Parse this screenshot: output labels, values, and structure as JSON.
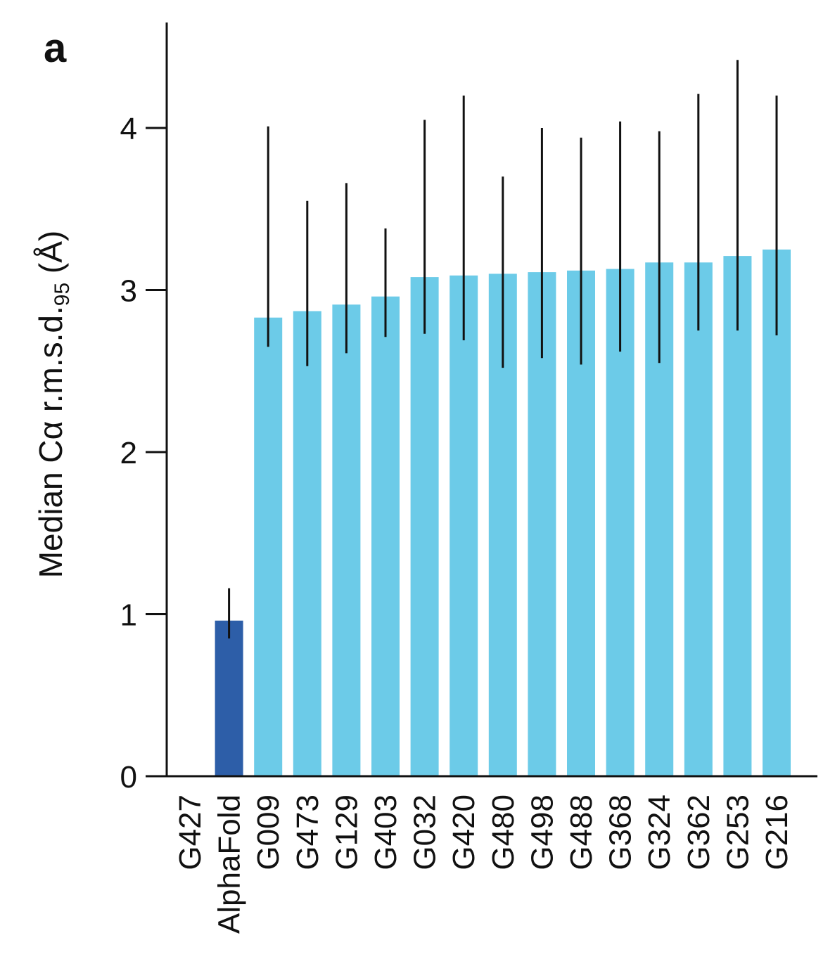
{
  "panel_label": "a",
  "chart_data": {
    "type": "bar",
    "title": "",
    "xlabel": "",
    "ylabel": {
      "main": "Median Cα r.m.s.d.",
      "subscript": "95",
      "unit": " (Å)"
    },
    "ylim": [
      0,
      4.6
    ],
    "yticks": [
      0,
      1,
      2,
      3,
      4
    ],
    "grid": false,
    "legend": "none",
    "categories": [
      "G427",
      "AlphaFold",
      "G009",
      "G473",
      "G129",
      "G403",
      "G032",
      "G420",
      "G480",
      "G498",
      "G488",
      "G368",
      "G324",
      "G362",
      "G253",
      "G216"
    ],
    "values": [
      null,
      0.96,
      2.83,
      2.87,
      2.91,
      2.96,
      3.08,
      3.09,
      3.1,
      3.11,
      3.12,
      3.13,
      3.17,
      3.17,
      3.21,
      3.25
    ],
    "error_low": [
      null,
      0.85,
      2.65,
      2.53,
      2.61,
      2.71,
      2.73,
      2.69,
      2.52,
      2.58,
      2.54,
      2.62,
      2.55,
      2.75,
      2.75,
      2.72
    ],
    "error_high": [
      null,
      1.16,
      4.01,
      3.55,
      3.66,
      3.38,
      4.05,
      4.2,
      3.7,
      4.0,
      3.94,
      4.04,
      3.98,
      4.21,
      4.42,
      4.2
    ],
    "colors": {
      "highlight": "#2d5ea8",
      "default": "#6ccbe8",
      "axis": "#111111"
    },
    "highlight_category": "AlphaFold"
  }
}
